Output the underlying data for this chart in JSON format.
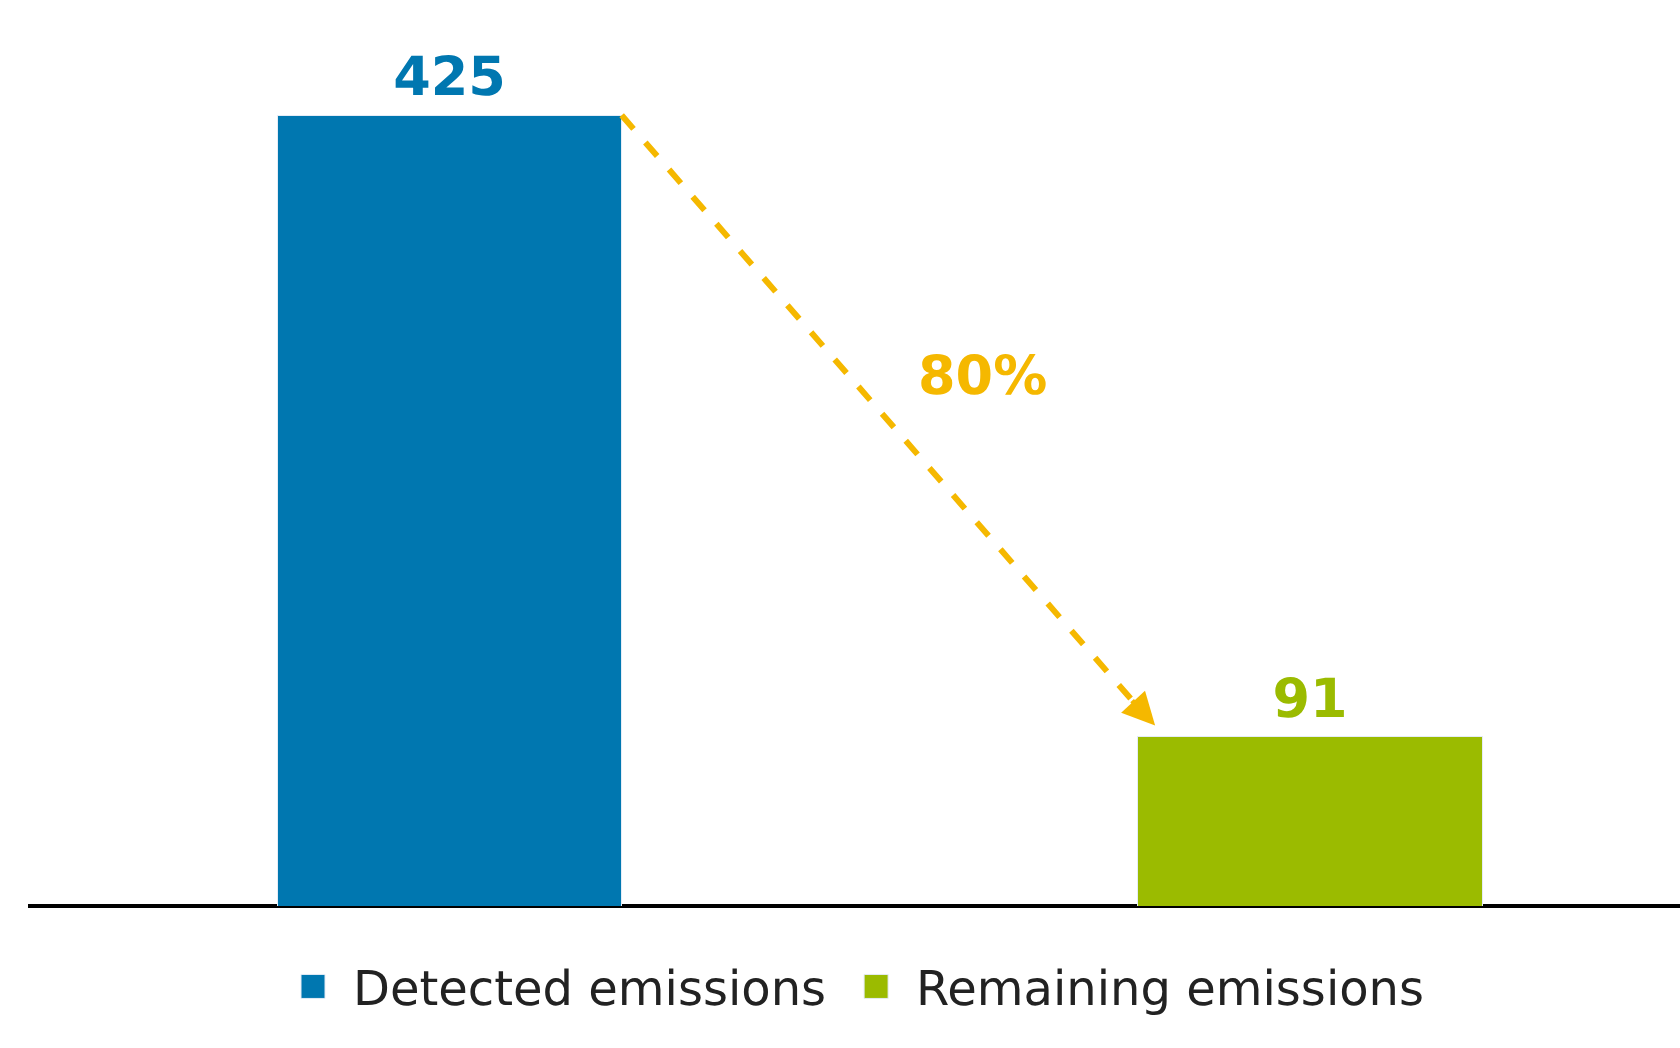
{
  "chart_data": {
    "type": "bar",
    "categories": [
      null,
      null
    ],
    "series": [
      {
        "name": "Detected emissions",
        "color": "#0077b0",
        "values": [
          425,
          null
        ]
      },
      {
        "name": "Remaining emissions",
        "color": "#9bbb00",
        "values": [
          null,
          91
        ]
      }
    ],
    "ylim": [
      0,
      487
    ],
    "tick_labels": false,
    "data_labels": true,
    "stacked": true,
    "legend": "bottom",
    "annotations": [
      "80%"
    ]
  }
}
